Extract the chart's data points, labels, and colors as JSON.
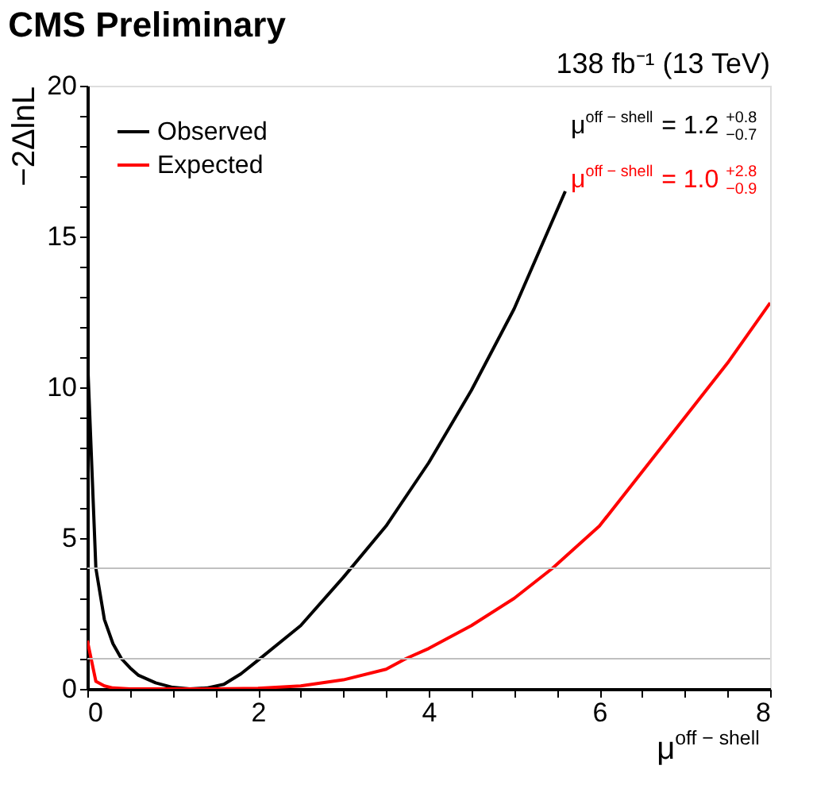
{
  "chart_data": {
    "type": "line",
    "title": "CMS Preliminary",
    "subtitle": "138 fb⁻¹ (13 TeV)",
    "xlabel": "μ$^{off − shell}$",
    "ylabel": "−2ΔlnL",
    "series": [
      {
        "name": "Observed",
        "color": "#000000",
        "x": [
          0,
          0.1,
          0.2,
          0.3,
          0.4,
          0.5,
          0.6,
          0.8,
          1.0,
          1.2,
          1.4,
          1.6,
          1.8,
          2.0,
          2.5,
          3.0,
          3.5,
          4.0,
          4.5,
          5.0,
          5.6
        ],
        "values": [
          11.1,
          4.0,
          2.3,
          1.5,
          1.0,
          0.7,
          0.45,
          0.2,
          0.05,
          0,
          0.03,
          0.15,
          0.5,
          0.95,
          2.1,
          3.7,
          5.4,
          7.5,
          9.9,
          12.6,
          16.5
        ]
      },
      {
        "name": "Expected",
        "color": "#ff0000",
        "x": [
          0,
          0.1,
          0.2,
          0.3,
          0.5,
          1.0,
          1.5,
          2.0,
          2.5,
          3.0,
          3.5,
          3.73,
          4.0,
          4.5,
          5.0,
          5.45,
          6.0,
          6.5,
          7.0,
          7.5,
          8.0
        ],
        "values": [
          1.6,
          0.25,
          0.1,
          0.03,
          0,
          0,
          0,
          0.02,
          0.1,
          0.3,
          0.65,
          1.0,
          1.34,
          2.1,
          3.0,
          4.0,
          5.4,
          7.2,
          9.0,
          10.8,
          12.8
        ]
      }
    ],
    "annotations": [
      "μ$^{off − shell}$ = 1.2$^{+0.8}$$_{−0.7}$",
      "μ$^{off − shell}$ = 1.0$^{+2.8}$$_{−0.9}$"
    ],
    "ref_lines": [
      {
        "axis": "y",
        "value": 1,
        "color": "#c0c0c0"
      },
      {
        "axis": "y",
        "value": 4,
        "color": "#c0c0c0"
      }
    ],
    "xlim": [
      0,
      8
    ],
    "xticks": [
      0,
      {
        "value": 0.5,
        "label": null
      },
      2,
      {
        "value": 1,
        "label": null
      },
      {
        "value": 1.5,
        "label": null
      },
      {
        "value": 2.5,
        "label": null
      },
      {
        "value": 3,
        "label": null
      },
      {
        "value": 3.5,
        "label": null
      },
      4,
      {
        "value": 4.5,
        "label": null
      },
      {
        "value": 5,
        "label": null
      },
      {
        "value": 5.5,
        "label": null
      },
      6,
      {
        "value": 6.5,
        "label": null
      },
      {
        "value": 7,
        "label": null
      },
      {
        "value": 7.5,
        "label": null
      },
      8
    ],
    "ylim": [
      0,
      20
    ],
    "yticks": [
      0,
      {
        "value": 1,
        "label": null
      },
      {
        "value": 2,
        "label": null
      },
      {
        "value": 3,
        "label": null
      },
      {
        "value": 4,
        "label": null
      },
      5,
      {
        "value": 6,
        "label": null
      },
      {
        "value": 7,
        "label": null
      },
      {
        "value": 8,
        "label": null
      },
      {
        "value": 9,
        "label": null
      },
      10,
      {
        "value": 11,
        "label": null
      },
      {
        "value": 12,
        "label": null
      },
      {
        "value": 13,
        "label": null
      },
      {
        "value": 14,
        "label": null
      },
      15,
      {
        "value": 16,
        "label": null
      },
      {
        "value": 17,
        "label": null
      },
      {
        "value": 18,
        "label": null
      },
      {
        "value": 19,
        "label": null
      },
      20
    ],
    "grid": false,
    "legend": "top left",
    "line_style": "solid",
    "marker": "none"
  }
}
